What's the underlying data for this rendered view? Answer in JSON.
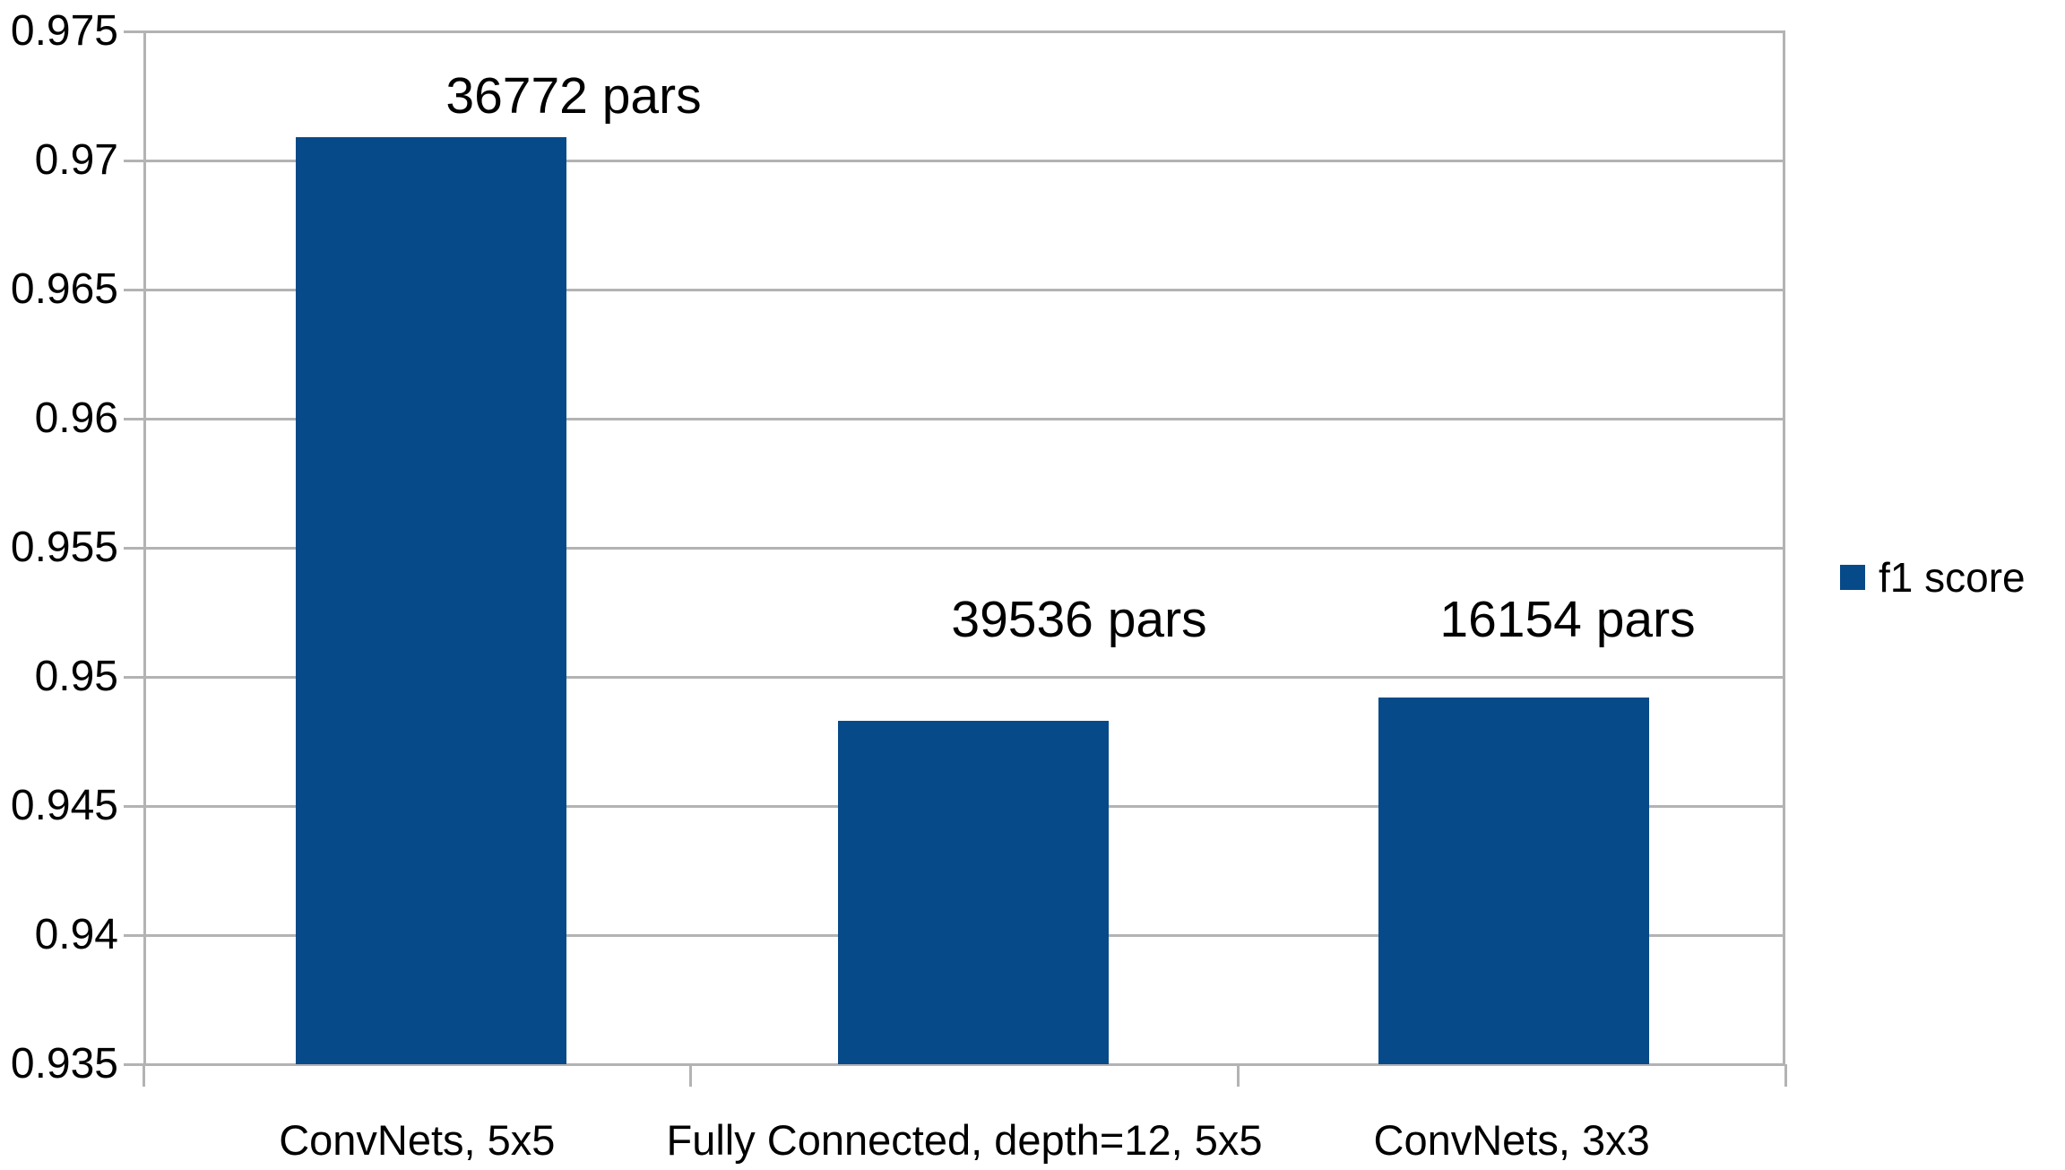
{
  "chart_data": {
    "type": "bar",
    "categories": [
      "ConvNets, 5x5",
      "Fully Connected, depth=12, 5x5",
      "ConvNets, 3x3"
    ],
    "series": [
      {
        "name": "f1 score",
        "values": [
          0.9709,
          0.9483,
          0.9492
        ]
      }
    ],
    "bar_labels": [
      "36772 pars",
      "39536 pars",
      "16154 pars"
    ],
    "title": "",
    "xlabel": "",
    "ylabel": "",
    "ylim": [
      0.935,
      0.975
    ],
    "ytick_step": 0.005,
    "yticks": [
      {
        "value": 0.975,
        "label": "0.975"
      },
      {
        "value": 0.97,
        "label": "0.97"
      },
      {
        "value": 0.965,
        "label": "0.965"
      },
      {
        "value": 0.96,
        "label": "0.96"
      },
      {
        "value": 0.955,
        "label": "0.955"
      },
      {
        "value": 0.95,
        "label": "0.95"
      },
      {
        "value": 0.945,
        "label": "0.945"
      },
      {
        "value": 0.94,
        "label": "0.94"
      },
      {
        "value": 0.935,
        "label": "0.935"
      }
    ],
    "grid": "horizontal",
    "legend": {
      "position": "right",
      "entries": [
        "f1 score"
      ]
    },
    "colors": {
      "bar": "#074a89",
      "grid": "#b3b3b3",
      "text": "#000000",
      "background": "#ffffff"
    }
  }
}
